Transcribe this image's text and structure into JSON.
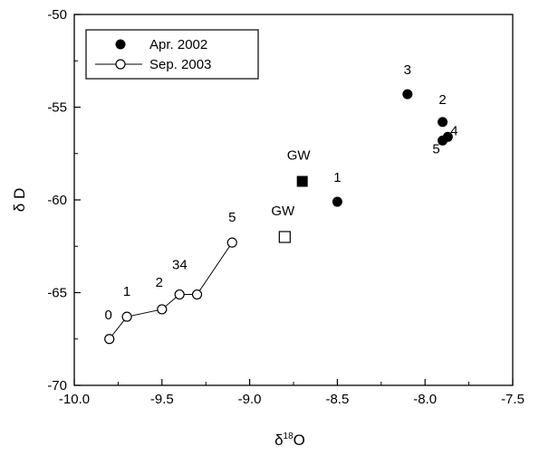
{
  "chart_data": {
    "type": "scatter",
    "xlabel": "δ18O",
    "ylabel": "δ D",
    "xlim": [
      -10.0,
      -7.5
    ],
    "ylim": [
      -70,
      -50
    ],
    "xticks": [
      "-10.0",
      "-9.5",
      "-9.0",
      "-8.5",
      "-8.0",
      "-7.5"
    ],
    "yticks": [
      "-70",
      "-65",
      "-60",
      "-55",
      "-50"
    ],
    "legend_position": "top-left",
    "grid": false,
    "series": [
      {
        "name": "Apr. 2002",
        "marker": "filled-circle",
        "line": false,
        "points": [
          {
            "x": -8.5,
            "y": -60.1,
            "label": "1"
          },
          {
            "x": -7.9,
            "y": -55.8,
            "label": "2"
          },
          {
            "x": -8.1,
            "y": -54.3,
            "label": "3"
          },
          {
            "x": -7.87,
            "y": -56.6,
            "label": "4"
          },
          {
            "x": -7.9,
            "y": -56.8,
            "label": "5"
          }
        ]
      },
      {
        "name": "Sep. 2003",
        "marker": "open-circle",
        "line": true,
        "points": [
          {
            "x": -9.8,
            "y": -67.5,
            "label": "0"
          },
          {
            "x": -9.7,
            "y": -66.3,
            "label": "1"
          },
          {
            "x": -9.5,
            "y": -65.9,
            "label": "2"
          },
          {
            "x": -9.4,
            "y": -65.1,
            "label": "3"
          },
          {
            "x": -9.3,
            "y": -65.1,
            "label": "4"
          },
          {
            "x": -9.1,
            "y": -62.3,
            "label": "5"
          }
        ]
      }
    ],
    "annotations": [
      {
        "x": -8.7,
        "y": -59.0,
        "marker": "filled-square",
        "label": "GW"
      },
      {
        "x": -8.8,
        "y": -62.0,
        "marker": "open-square",
        "label": "GW"
      }
    ]
  }
}
